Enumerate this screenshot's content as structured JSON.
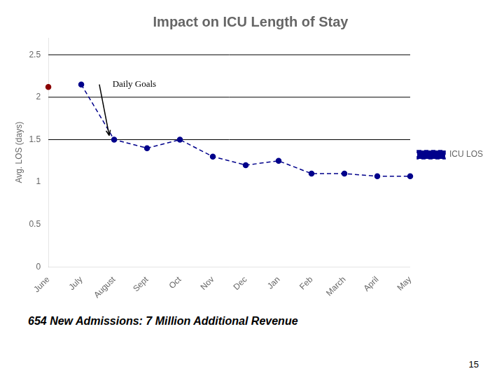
{
  "chart_data": {
    "type": "line",
    "title": "Impact on ICU Length of Stay",
    "ylabel": "Avg. LOS (days)",
    "categories": [
      "June",
      "July",
      "August",
      "Sept",
      "Oct",
      "Nov",
      "Dec",
      "Jan",
      "Feb",
      "March",
      "April",
      "May"
    ],
    "series": [
      {
        "color": "#8B0000",
        "marker": "circle",
        "line_style": "none",
        "values": [
          2.12,
          null,
          null,
          null,
          null,
          null,
          null,
          null,
          null,
          null,
          null,
          null
        ]
      },
      {
        "name": "ICU LOS",
        "color": "#00008B",
        "marker": "circle",
        "line_style": "dashed",
        "values": [
          null,
          2.15,
          1.5,
          1.4,
          1.5,
          1.3,
          1.2,
          1.25,
          1.1,
          1.1,
          1.07,
          1.07
        ]
      }
    ],
    "ylim": [
      0,
      2.7
    ],
    "yticks": [
      0,
      0.5,
      1,
      1.5,
      2,
      2.5
    ],
    "grid": false,
    "legend": "right",
    "reference_lines": [
      1.5,
      2,
      2.5
    ],
    "annotations": [
      "Daily Goals",
      "654 New Admissions: 7 Million Additional Revenue",
      "15"
    ]
  }
}
